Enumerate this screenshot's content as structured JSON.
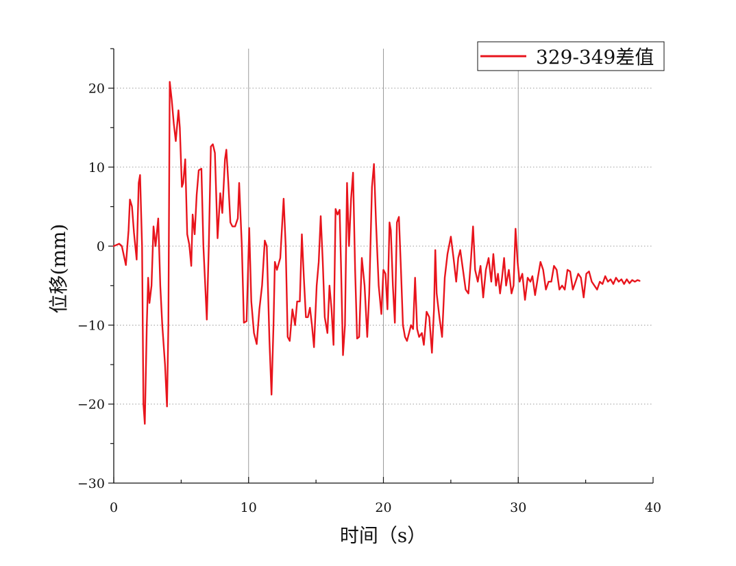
{
  "chart_data": {
    "type": "line",
    "title": "",
    "xlabel": "时间（s）",
    "ylabel": "位移(mm)",
    "xlim": [
      0,
      40
    ],
    "ylim": [
      -30,
      25
    ],
    "x_ticks": [
      0,
      10,
      20,
      30,
      40
    ],
    "y_ticks": [
      -30,
      -20,
      -10,
      0,
      10,
      20
    ],
    "x_tick_labels": [
      "0",
      "10",
      "20",
      "30",
      "40"
    ],
    "y_tick_labels": [
      "−30",
      "−20",
      "−10",
      "0",
      "10",
      "20"
    ],
    "grid": {
      "vertical": "solid gray at major x ticks",
      "horizontal": "dotted gray at major y ticks"
    },
    "legend_position": "top-right",
    "series": [
      {
        "name": "329-349差值",
        "color": "#e8141c",
        "points": [
          [
            0,
            0
          ],
          [
            0.4,
            0.3
          ],
          [
            0.6,
            0
          ],
          [
            0.9,
            -2.4
          ],
          [
            1.1,
            2
          ],
          [
            1.2,
            5.9
          ],
          [
            1.35,
            5
          ],
          [
            1.5,
            1.7
          ],
          [
            1.7,
            -1.7
          ],
          [
            1.85,
            8
          ],
          [
            1.95,
            9
          ],
          [
            2.1,
            0
          ],
          [
            2.2,
            -20
          ],
          [
            2.3,
            -22.5
          ],
          [
            2.45,
            -10
          ],
          [
            2.55,
            -4
          ],
          [
            2.65,
            -7.2
          ],
          [
            2.8,
            -5
          ],
          [
            2.95,
            2.5
          ],
          [
            3.1,
            0
          ],
          [
            3.3,
            3.5
          ],
          [
            3.45,
            -5
          ],
          [
            3.6,
            -10
          ],
          [
            3.8,
            -15
          ],
          [
            3.95,
            -20.3
          ],
          [
            4.05,
            -10
          ],
          [
            4.15,
            20.8
          ],
          [
            4.3,
            18.5
          ],
          [
            4.45,
            15.5
          ],
          [
            4.6,
            13.3
          ],
          [
            4.8,
            17.2
          ],
          [
            4.9,
            15
          ],
          [
            5.05,
            7.5
          ],
          [
            5.15,
            8
          ],
          [
            5.3,
            11
          ],
          [
            5.45,
            1.5
          ],
          [
            5.6,
            0.2
          ],
          [
            5.75,
            -2.5
          ],
          [
            5.85,
            4
          ],
          [
            6.0,
            1.5
          ],
          [
            6.15,
            6.5
          ],
          [
            6.3,
            9.6
          ],
          [
            6.5,
            9.8
          ],
          [
            6.65,
            0
          ],
          [
            6.9,
            -9.3
          ],
          [
            7.05,
            0
          ],
          [
            7.2,
            12.6
          ],
          [
            7.35,
            12.9
          ],
          [
            7.5,
            11.8
          ],
          [
            7.7,
            1
          ],
          [
            7.9,
            6.7
          ],
          [
            8.05,
            4.2
          ],
          [
            8.25,
            11
          ],
          [
            8.35,
            12.2
          ],
          [
            8.5,
            8
          ],
          [
            8.65,
            3
          ],
          [
            8.8,
            2.5
          ],
          [
            9.0,
            2.5
          ],
          [
            9.2,
            3.5
          ],
          [
            9.3,
            8
          ],
          [
            9.5,
            0
          ],
          [
            9.65,
            -9.7
          ],
          [
            9.85,
            -9.5
          ],
          [
            10.05,
            2.3
          ],
          [
            10.2,
            -7
          ],
          [
            10.4,
            -11
          ],
          [
            10.6,
            -12.4
          ],
          [
            10.8,
            -8
          ],
          [
            11.0,
            -5
          ],
          [
            11.2,
            0.7
          ],
          [
            11.35,
            0
          ],
          [
            11.55,
            -12
          ],
          [
            11.7,
            -18.8
          ],
          [
            11.85,
            -10
          ],
          [
            11.95,
            -2
          ],
          [
            12.1,
            -3
          ],
          [
            12.35,
            -1.5
          ],
          [
            12.5,
            3
          ],
          [
            12.6,
            6
          ],
          [
            12.75,
            0
          ],
          [
            12.9,
            -11.5
          ],
          [
            13.05,
            -12
          ],
          [
            13.25,
            -8
          ],
          [
            13.45,
            -10
          ],
          [
            13.6,
            -7
          ],
          [
            13.8,
            -7
          ],
          [
            13.95,
            1.5
          ],
          [
            14.1,
            -4
          ],
          [
            14.25,
            -9
          ],
          [
            14.4,
            -9
          ],
          [
            14.55,
            -7.8
          ],
          [
            14.7,
            -10
          ],
          [
            14.85,
            -12.8
          ],
          [
            15.05,
            -5
          ],
          [
            15.2,
            -2
          ],
          [
            15.35,
            3.8
          ],
          [
            15.5,
            -2
          ],
          [
            15.65,
            -9
          ],
          [
            15.85,
            -11
          ],
          [
            16.0,
            -5
          ],
          [
            16.15,
            -8
          ],
          [
            16.3,
            -12.5
          ],
          [
            16.45,
            4.7
          ],
          [
            16.6,
            4
          ],
          [
            16.75,
            4.6
          ],
          [
            16.85,
            -2
          ],
          [
            17.0,
            -13.8
          ],
          [
            17.15,
            -10
          ],
          [
            17.3,
            8
          ],
          [
            17.45,
            0
          ],
          [
            17.6,
            6
          ],
          [
            17.75,
            9.3
          ],
          [
            17.9,
            -3
          ],
          [
            18.05,
            -11.7
          ],
          [
            18.2,
            -11.5
          ],
          [
            18.4,
            -1.5
          ],
          [
            18.6,
            -5
          ],
          [
            18.8,
            -11.5
          ],
          [
            18.95,
            -6
          ],
          [
            19.15,
            7.5
          ],
          [
            19.3,
            10.4
          ],
          [
            19.45,
            3
          ],
          [
            19.65,
            -5
          ],
          [
            19.85,
            -8.6
          ],
          [
            20.0,
            -3
          ],
          [
            20.15,
            -3.5
          ],
          [
            20.3,
            -8
          ],
          [
            20.45,
            3
          ],
          [
            20.55,
            2
          ],
          [
            20.7,
            -5
          ],
          [
            20.85,
            -9.7
          ],
          [
            21.0,
            3
          ],
          [
            21.15,
            3.7
          ],
          [
            21.3,
            -3
          ],
          [
            21.45,
            -10
          ],
          [
            21.6,
            -11.5
          ],
          [
            21.75,
            -12
          ],
          [
            21.9,
            -11
          ],
          [
            22.05,
            -10
          ],
          [
            22.2,
            -10.5
          ],
          [
            22.35,
            -4
          ],
          [
            22.5,
            -10.5
          ],
          [
            22.65,
            -11.5
          ],
          [
            22.85,
            -11
          ],
          [
            23.0,
            -12.5
          ],
          [
            23.2,
            -8.3
          ],
          [
            23.4,
            -9
          ],
          [
            23.6,
            -13.5
          ],
          [
            23.75,
            -8
          ],
          [
            23.85,
            -0.5
          ],
          [
            23.95,
            -6
          ],
          [
            24.15,
            -9
          ],
          [
            24.35,
            -11.5
          ],
          [
            24.55,
            -4
          ],
          [
            24.75,
            -1
          ],
          [
            25.0,
            1.2
          ],
          [
            25.2,
            -1.5
          ],
          [
            25.4,
            -4.5
          ],
          [
            25.55,
            -1.5
          ],
          [
            25.7,
            -0.5
          ],
          [
            25.9,
            -3
          ],
          [
            26.1,
            -5.5
          ],
          [
            26.3,
            -6
          ],
          [
            26.5,
            -1.5
          ],
          [
            26.65,
            2.5
          ],
          [
            26.8,
            -3
          ],
          [
            27.0,
            -4.5
          ],
          [
            27.2,
            -2.5
          ],
          [
            27.4,
            -6.5
          ],
          [
            27.6,
            -3
          ],
          [
            27.8,
            -1.5
          ],
          [
            28.0,
            -4.5
          ],
          [
            28.15,
            -1
          ],
          [
            28.35,
            -5
          ],
          [
            28.5,
            -3.5
          ],
          [
            28.65,
            -6
          ],
          [
            28.8,
            -4
          ],
          [
            28.95,
            -1.5
          ],
          [
            29.1,
            -5
          ],
          [
            29.3,
            -3
          ],
          [
            29.5,
            -6
          ],
          [
            29.65,
            -5
          ],
          [
            29.8,
            2.2
          ],
          [
            29.95,
            -2
          ],
          [
            30.1,
            -4.5
          ],
          [
            30.3,
            -3.5
          ],
          [
            30.5,
            -6.8
          ],
          [
            30.7,
            -4
          ],
          [
            30.9,
            -4.5
          ],
          [
            31.05,
            -3.8
          ],
          [
            31.25,
            -6.2
          ],
          [
            31.45,
            -4
          ],
          [
            31.65,
            -2
          ],
          [
            31.85,
            -3
          ],
          [
            32.05,
            -5.5
          ],
          [
            32.25,
            -4.5
          ],
          [
            32.45,
            -4.5
          ],
          [
            32.65,
            -2.5
          ],
          [
            32.85,
            -3
          ],
          [
            33.05,
            -5.5
          ],
          [
            33.25,
            -5
          ],
          [
            33.45,
            -5.5
          ],
          [
            33.65,
            -3
          ],
          [
            33.85,
            -3.2
          ],
          [
            34.05,
            -5.5
          ],
          [
            34.25,
            -4.5
          ],
          [
            34.45,
            -3.5
          ],
          [
            34.65,
            -4
          ],
          [
            34.85,
            -6.5
          ],
          [
            35.05,
            -3.5
          ],
          [
            35.25,
            -3.2
          ],
          [
            35.45,
            -4.5
          ],
          [
            35.65,
            -5
          ],
          [
            35.85,
            -5.5
          ],
          [
            36.05,
            -4.5
          ],
          [
            36.25,
            -4.8
          ],
          [
            36.45,
            -3.8
          ],
          [
            36.65,
            -4.5
          ],
          [
            36.85,
            -4.2
          ],
          [
            37.05,
            -4.8
          ],
          [
            37.25,
            -4
          ],
          [
            37.45,
            -4.5
          ],
          [
            37.65,
            -4.2
          ],
          [
            37.85,
            -4.8
          ],
          [
            38.05,
            -4.2
          ],
          [
            38.25,
            -4.7
          ],
          [
            38.45,
            -4.3
          ],
          [
            38.65,
            -4.5
          ],
          [
            38.85,
            -4.3
          ],
          [
            39.0,
            -4.4
          ]
        ]
      }
    ]
  }
}
